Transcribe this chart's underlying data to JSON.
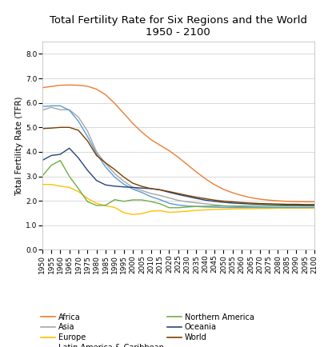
{
  "title": "Total Fertility Rate for Six Regions and the World\n1950 - 2100",
  "ylabel": "Total Fertility Rate (TFR)",
  "ylim": [
    0.0,
    8.5
  ],
  "yticks": [
    0.0,
    1.0,
    2.0,
    3.0,
    4.0,
    5.0,
    6.0,
    7.0,
    8.0
  ],
  "ytick_labels": [
    "0.0",
    "1.0",
    "2.0",
    "3.0",
    "4.0",
    "5.0",
    "6.0",
    "7.0",
    "8.0"
  ],
  "xticks": [
    1950,
    1955,
    1960,
    1965,
    1970,
    1975,
    1980,
    1985,
    1990,
    1995,
    2000,
    2005,
    2010,
    2015,
    2020,
    2025,
    2030,
    2035,
    2040,
    2045,
    2050,
    2055,
    2060,
    2065,
    2070,
    2075,
    2080,
    2085,
    2090,
    2095,
    2100
  ],
  "xlim": [
    1950,
    2100
  ],
  "series": {
    "Africa": {
      "color": "#ED7D31",
      "data": {
        "1950": 6.62,
        "1955": 6.67,
        "1960": 6.72,
        "1965": 6.73,
        "1970": 6.72,
        "1975": 6.68,
        "1980": 6.56,
        "1985": 6.33,
        "1990": 5.98,
        "1995": 5.57,
        "2000": 5.16,
        "2005": 4.8,
        "2010": 4.5,
        "2015": 4.27,
        "2020": 4.05,
        "2025": 3.78,
        "2030": 3.48,
        "2035": 3.18,
        "2040": 2.9,
        "2045": 2.66,
        "2050": 2.47,
        "2055": 2.33,
        "2060": 2.22,
        "2065": 2.13,
        "2070": 2.07,
        "2075": 2.03,
        "2080": 2.0,
        "2085": 1.98,
        "2090": 1.97,
        "2095": 1.96,
        "2100": 1.96
      }
    },
    "Asia": {
      "color": "#A5A5A5",
      "data": {
        "1950": 5.7,
        "1955": 5.82,
        "1960": 5.72,
        "1965": 5.72,
        "1970": 5.42,
        "1975": 4.85,
        "1980": 4.0,
        "1985": 3.52,
        "1990": 3.11,
        "1995": 2.8,
        "2000": 2.55,
        "2005": 2.42,
        "2010": 2.3,
        "2015": 2.22,
        "2020": 2.12,
        "2025": 2.02,
        "2030": 1.96,
        "2035": 1.92,
        "2040": 1.88,
        "2045": 1.84,
        "2050": 1.8,
        "2055": 1.78,
        "2060": 1.76,
        "2065": 1.74,
        "2070": 1.73,
        "2075": 1.72,
        "2080": 1.72,
        "2085": 1.71,
        "2090": 1.71,
        "2095": 1.71,
        "2100": 1.71
      }
    },
    "Europe": {
      "color": "#FFC000",
      "data": {
        "1950": 2.67,
        "1955": 2.67,
        "1960": 2.6,
        "1965": 2.55,
        "1970": 2.38,
        "1975": 2.1,
        "1980": 1.9,
        "1985": 1.8,
        "1990": 1.73,
        "1995": 1.52,
        "2000": 1.44,
        "2005": 1.48,
        "2010": 1.58,
        "2015": 1.6,
        "2020": 1.53,
        "2025": 1.55,
        "2030": 1.58,
        "2035": 1.61,
        "2040": 1.63,
        "2045": 1.65,
        "2050": 1.66,
        "2055": 1.67,
        "2060": 1.68,
        "2065": 1.68,
        "2070": 1.69,
        "2075": 1.69,
        "2080": 1.7,
        "2085": 1.7,
        "2090": 1.7,
        "2095": 1.7,
        "2100": 1.71
      }
    },
    "Latin America & Caribbean": {
      "color": "#5B9BD5",
      "data": {
        "1950": 5.85,
        "1955": 5.88,
        "1960": 5.88,
        "1965": 5.7,
        "1970": 5.25,
        "1975": 4.63,
        "1980": 3.92,
        "1985": 3.38,
        "1990": 2.97,
        "1995": 2.68,
        "2000": 2.48,
        "2005": 2.34,
        "2010": 2.17,
        "2015": 2.05,
        "2020": 1.9,
        "2025": 1.83,
        "2030": 1.79,
        "2035": 1.77,
        "2040": 1.75,
        "2045": 1.74,
        "2050": 1.73,
        "2055": 1.73,
        "2060": 1.73,
        "2065": 1.73,
        "2070": 1.73,
        "2075": 1.73,
        "2080": 1.73,
        "2085": 1.73,
        "2090": 1.73,
        "2095": 1.73,
        "2100": 1.73
      }
    },
    "Northern America": {
      "color": "#70AD47",
      "data": {
        "1950": 3.0,
        "1955": 3.45,
        "1960": 3.65,
        "1965": 3.0,
        "1970": 2.5,
        "1975": 1.97,
        "1980": 1.81,
        "1985": 1.82,
        "1990": 2.05,
        "1995": 1.98,
        "2000": 2.04,
        "2005": 2.04,
        "2010": 1.97,
        "2015": 1.88,
        "2020": 1.72,
        "2025": 1.72,
        "2030": 1.75,
        "2035": 1.77,
        "2040": 1.78,
        "2045": 1.79,
        "2050": 1.79,
        "2055": 1.79,
        "2060": 1.79,
        "2065": 1.79,
        "2070": 1.79,
        "2075": 1.79,
        "2080": 1.79,
        "2085": 1.79,
        "2090": 1.79,
        "2095": 1.79,
        "2100": 1.79
      }
    },
    "Oceania": {
      "color": "#264478",
      "data": {
        "1950": 3.65,
        "1955": 3.85,
        "1960": 3.9,
        "1965": 4.15,
        "1970": 3.75,
        "1975": 3.25,
        "1980": 2.83,
        "1985": 2.65,
        "1990": 2.6,
        "1995": 2.57,
        "2000": 2.55,
        "2005": 2.52,
        "2010": 2.5,
        "2015": 2.45,
        "2020": 2.35,
        "2025": 2.26,
        "2030": 2.18,
        "2035": 2.1,
        "2040": 2.03,
        "2045": 1.98,
        "2050": 1.94,
        "2055": 1.91,
        "2060": 1.89,
        "2065": 1.87,
        "2070": 1.86,
        "2075": 1.85,
        "2080": 1.84,
        "2085": 1.83,
        "2090": 1.83,
        "2095": 1.82,
        "2100": 1.82
      }
    },
    "World": {
      "color": "#7B3F00",
      "data": {
        "1950": 4.95,
        "1955": 4.97,
        "1960": 5.0,
        "1965": 5.0,
        "1970": 4.88,
        "1975": 4.45,
        "1980": 3.85,
        "1985": 3.55,
        "1990": 3.28,
        "1995": 2.97,
        "2000": 2.72,
        "2005": 2.59,
        "2010": 2.5,
        "2015": 2.45,
        "2020": 2.38,
        "2025": 2.3,
        "2030": 2.22,
        "2035": 2.15,
        "2040": 2.09,
        "2045": 2.03,
        "2050": 1.99,
        "2055": 1.96,
        "2060": 1.93,
        "2065": 1.91,
        "2070": 1.89,
        "2075": 1.88,
        "2080": 1.87,
        "2085": 1.86,
        "2090": 1.86,
        "2095": 1.85,
        "2100": 1.85
      }
    }
  },
  "legend_col1": [
    "Africa",
    "Europe",
    "Northern America",
    "World"
  ],
  "legend_col2": [
    "Asia",
    "Latin America & Caribbean",
    "Oceania"
  ],
  "background_color": "#ffffff",
  "grid_color": "#d3d3d3",
  "title_fontsize": 9.5,
  "label_fontsize": 7.5,
  "tick_fontsize": 6.5,
  "legend_fontsize": 7
}
